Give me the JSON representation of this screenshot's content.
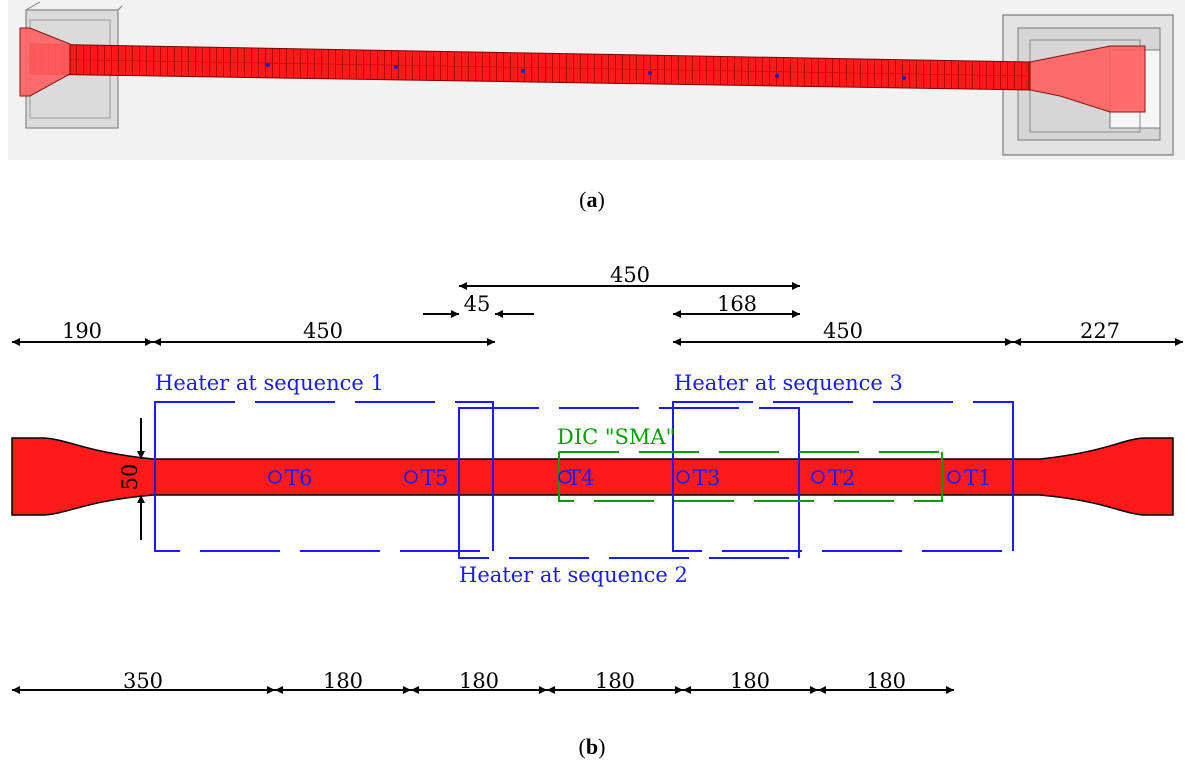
{
  "captions": {
    "a_open": "(",
    "a_letter": "a",
    "a_close": ")",
    "b_open": "(",
    "b_letter": "b",
    "b_close": ")"
  },
  "top_dims": {
    "d190": "190",
    "d450_left": "450",
    "d45": "45",
    "d450_top": "450",
    "d168": "168",
    "d450_right": "450",
    "d227": "227"
  },
  "bottom_dims": {
    "d350": "350",
    "d180_1": "180",
    "d180_2": "180",
    "d180_3": "180",
    "d180_4": "180",
    "d180_5": "180"
  },
  "width_dim": "50",
  "heaters": {
    "seq1": "Heater at sequence 1",
    "seq2": "Heater at sequence 2",
    "seq3": "Heater at sequence 3"
  },
  "dic_label": "DIC \"SMA\"",
  "sensors": [
    "T6",
    "T5",
    "T4",
    "T3",
    "T2",
    "T1"
  ],
  "colors": {
    "specimen": "#ff1a1a",
    "heater": "#1a1aff",
    "dic": "#00a000",
    "fixture": "#b8b8b8",
    "dimension": "#000000"
  }
}
